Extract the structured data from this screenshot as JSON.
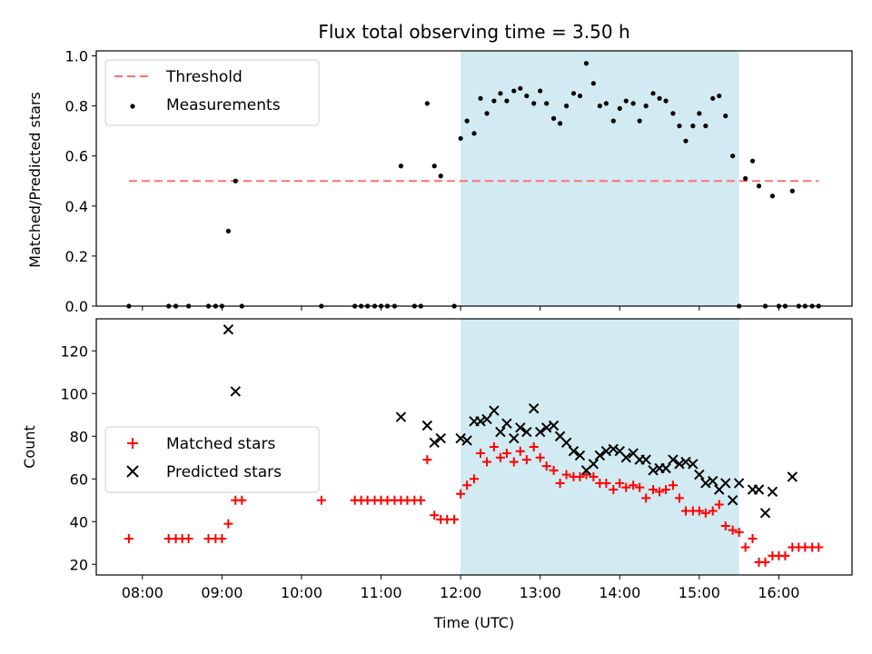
{
  "title": "Flux total observing time = 3.50 h",
  "xlabel": "Time (UTC)",
  "x_tick_labels": [
    "08:00",
    "09:00",
    "10:00",
    "11:00",
    "12:00",
    "13:00",
    "14:00",
    "15:00",
    "16:00"
  ],
  "chart_data": [
    {
      "type": "scatter",
      "panel": "top",
      "ylabel": "Matched/Predicted stars",
      "ylim": [
        0,
        1.02
      ],
      "yticks": [
        0.0,
        0.2,
        0.4,
        0.6,
        0.8,
        1.0
      ],
      "ytick_labels": [
        "0.0",
        "0.2",
        "0.4",
        "0.6",
        "0.8",
        "1.0"
      ],
      "xlim_hours": [
        7.42,
        16.92
      ],
      "x_tick_hours": [
        8,
        9,
        10,
        11,
        12,
        13,
        14,
        15,
        16
      ],
      "shaded_region_hours": [
        12.0,
        15.5
      ],
      "shade_color": "#add8e6",
      "legend_placement": "upper left",
      "threshold": {
        "name": "Threshold",
        "value": 0.5,
        "x_range_hours": [
          7.83,
          16.5
        ],
        "color": "#ff7070"
      },
      "series": [
        {
          "name": "Measurements",
          "color": "#000000",
          "points": [
            [
              7.83,
              0
            ],
            [
              8.33,
              0
            ],
            [
              8.42,
              0
            ],
            [
              8.58,
              0
            ],
            [
              8.83,
              0
            ],
            [
              8.92,
              0
            ],
            [
              9.0,
              0
            ],
            [
              9.08,
              0.3
            ],
            [
              9.17,
              0.5
            ],
            [
              9.25,
              0
            ],
            [
              10.25,
              0
            ],
            [
              10.67,
              0
            ],
            [
              10.75,
              0
            ],
            [
              10.83,
              0
            ],
            [
              10.92,
              0
            ],
            [
              11.0,
              0
            ],
            [
              11.08,
              0
            ],
            [
              11.17,
              0
            ],
            [
              11.25,
              0.56
            ],
            [
              11.42,
              0
            ],
            [
              11.5,
              0
            ],
            [
              11.58,
              0.81
            ],
            [
              11.67,
              0.56
            ],
            [
              11.75,
              0.52
            ],
            [
              11.92,
              0
            ],
            [
              12.0,
              0.67
            ],
            [
              12.08,
              0.74
            ],
            [
              12.17,
              0.69
            ],
            [
              12.25,
              0.83
            ],
            [
              12.33,
              0.77
            ],
            [
              12.42,
              0.82
            ],
            [
              12.5,
              0.85
            ],
            [
              12.58,
              0.82
            ],
            [
              12.67,
              0.86
            ],
            [
              12.75,
              0.87
            ],
            [
              12.83,
              0.84
            ],
            [
              12.92,
              0.81
            ],
            [
              13.0,
              0.86
            ],
            [
              13.08,
              0.81
            ],
            [
              13.17,
              0.75
            ],
            [
              13.25,
              0.73
            ],
            [
              13.33,
              0.8
            ],
            [
              13.42,
              0.85
            ],
            [
              13.5,
              0.84
            ],
            [
              13.58,
              0.97
            ],
            [
              13.67,
              0.89
            ],
            [
              13.75,
              0.8
            ],
            [
              13.83,
              0.81
            ],
            [
              13.92,
              0.74
            ],
            [
              14.0,
              0.79
            ],
            [
              14.08,
              0.82
            ],
            [
              14.17,
              0.81
            ],
            [
              14.25,
              0.74
            ],
            [
              14.33,
              0.8
            ],
            [
              14.42,
              0.85
            ],
            [
              14.5,
              0.83
            ],
            [
              14.58,
              0.82
            ],
            [
              14.67,
              0.77
            ],
            [
              14.75,
              0.72
            ],
            [
              14.83,
              0.66
            ],
            [
              14.92,
              0.72
            ],
            [
              15.0,
              0.77
            ],
            [
              15.08,
              0.72
            ],
            [
              15.17,
              0.83
            ],
            [
              15.25,
              0.84
            ],
            [
              15.33,
              0.76
            ],
            [
              15.42,
              0.6
            ],
            [
              15.5,
              0
            ],
            [
              15.58,
              0.51
            ],
            [
              15.67,
              0.58
            ],
            [
              15.75,
              0.48
            ],
            [
              15.83,
              0
            ],
            [
              15.92,
              0.44
            ],
            [
              16.0,
              0
            ],
            [
              16.08,
              0
            ],
            [
              16.17,
              0.46
            ],
            [
              16.25,
              0
            ],
            [
              16.33,
              0
            ],
            [
              16.42,
              0
            ],
            [
              16.5,
              0
            ]
          ]
        }
      ]
    },
    {
      "type": "scatter",
      "panel": "bottom",
      "ylabel": "Count",
      "ylim": [
        15,
        135
      ],
      "yticks": [
        20,
        40,
        60,
        80,
        100,
        120
      ],
      "ytick_labels": [
        "20",
        "40",
        "60",
        "80",
        "100",
        "120"
      ],
      "xlim_hours": [
        7.42,
        16.92
      ],
      "x_tick_hours": [
        8,
        9,
        10,
        11,
        12,
        13,
        14,
        15,
        16
      ],
      "shaded_region_hours": [
        12.0,
        15.5
      ],
      "shade_color": "#add8e6",
      "legend_placement": "center left",
      "series": [
        {
          "name": "Matched stars",
          "marker": "plus",
          "color": "#ff0000",
          "points": [
            [
              7.83,
              32
            ],
            [
              8.33,
              32
            ],
            [
              8.42,
              32
            ],
            [
              8.5,
              32
            ],
            [
              8.58,
              32
            ],
            [
              8.83,
              32
            ],
            [
              8.92,
              32
            ],
            [
              9.0,
              32
            ],
            [
              9.08,
              39
            ],
            [
              9.17,
              50
            ],
            [
              9.25,
              50
            ],
            [
              10.25,
              50
            ],
            [
              10.67,
              50
            ],
            [
              10.75,
              50
            ],
            [
              10.83,
              50
            ],
            [
              10.92,
              50
            ],
            [
              11.0,
              50
            ],
            [
              11.08,
              50
            ],
            [
              11.17,
              50
            ],
            [
              11.25,
              50
            ],
            [
              11.33,
              50
            ],
            [
              11.42,
              50
            ],
            [
              11.5,
              50
            ],
            [
              11.58,
              69
            ],
            [
              11.67,
              43
            ],
            [
              11.75,
              41
            ],
            [
              11.83,
              41
            ],
            [
              11.92,
              41
            ],
            [
              12.0,
              53
            ],
            [
              12.08,
              57
            ],
            [
              12.17,
              60
            ],
            [
              12.25,
              72
            ],
            [
              12.33,
              68
            ],
            [
              12.42,
              75
            ],
            [
              12.5,
              70
            ],
            [
              12.58,
              72
            ],
            [
              12.67,
              68
            ],
            [
              12.75,
              73
            ],
            [
              12.83,
              69
            ],
            [
              12.92,
              75
            ],
            [
              13.0,
              70
            ],
            [
              13.08,
              66
            ],
            [
              13.17,
              64
            ],
            [
              13.25,
              58
            ],
            [
              13.33,
              62
            ],
            [
              13.42,
              61
            ],
            [
              13.5,
              61
            ],
            [
              13.58,
              62
            ],
            [
              13.67,
              61
            ],
            [
              13.75,
              58
            ],
            [
              13.83,
              58
            ],
            [
              13.92,
              55
            ],
            [
              14.0,
              58
            ],
            [
              14.08,
              56
            ],
            [
              14.17,
              57
            ],
            [
              14.25,
              56
            ],
            [
              14.33,
              51
            ],
            [
              14.42,
              55
            ],
            [
              14.5,
              54
            ],
            [
              14.58,
              55
            ],
            [
              14.67,
              57
            ],
            [
              14.75,
              51
            ],
            [
              14.83,
              45
            ],
            [
              14.92,
              45
            ],
            [
              15.0,
              45
            ],
            [
              15.08,
              44
            ],
            [
              15.17,
              45
            ],
            [
              15.25,
              48
            ],
            [
              15.33,
              38
            ],
            [
              15.42,
              36
            ],
            [
              15.5,
              35
            ],
            [
              15.58,
              28
            ],
            [
              15.67,
              32
            ],
            [
              15.75,
              21
            ],
            [
              15.83,
              21
            ],
            [
              15.92,
              24
            ],
            [
              16.0,
              24
            ],
            [
              16.08,
              24
            ],
            [
              16.17,
              28
            ],
            [
              16.25,
              28
            ],
            [
              16.33,
              28
            ],
            [
              16.42,
              28
            ],
            [
              16.5,
              28
            ]
          ]
        },
        {
          "name": "Predicted stars",
          "marker": "x",
          "color": "#000000",
          "points": [
            [
              9.08,
              130
            ],
            [
              9.17,
              101
            ],
            [
              11.25,
              89
            ],
            [
              11.58,
              85
            ],
            [
              11.67,
              77
            ],
            [
              11.75,
              79
            ],
            [
              12.0,
              79
            ],
            [
              12.08,
              78
            ],
            [
              12.17,
              87
            ],
            [
              12.25,
              87
            ],
            [
              12.33,
              88
            ],
            [
              12.42,
              92
            ],
            [
              12.5,
              82
            ],
            [
              12.58,
              86
            ],
            [
              12.67,
              79
            ],
            [
              12.75,
              84
            ],
            [
              12.83,
              82
            ],
            [
              12.92,
              93
            ],
            [
              13.0,
              82
            ],
            [
              13.08,
              84
            ],
            [
              13.17,
              85
            ],
            [
              13.25,
              80
            ],
            [
              13.33,
              77
            ],
            [
              13.42,
              73
            ],
            [
              13.5,
              71
            ],
            [
              13.58,
              64
            ],
            [
              13.67,
              67
            ],
            [
              13.75,
              71
            ],
            [
              13.83,
              73
            ],
            [
              13.92,
              74
            ],
            [
              14.0,
              73
            ],
            [
              14.08,
              70
            ],
            [
              14.17,
              72
            ],
            [
              14.25,
              69
            ],
            [
              14.33,
              69
            ],
            [
              14.42,
              64
            ],
            [
              14.5,
              65
            ],
            [
              14.58,
              65
            ],
            [
              14.67,
              69
            ],
            [
              14.75,
              67
            ],
            [
              14.83,
              68
            ],
            [
              14.92,
              67
            ],
            [
              15.0,
              62
            ],
            [
              15.08,
              58
            ],
            [
              15.17,
              59
            ],
            [
              15.25,
              55
            ],
            [
              15.33,
              58
            ],
            [
              15.42,
              50
            ],
            [
              15.5,
              58
            ],
            [
              15.67,
              55
            ],
            [
              15.75,
              55
            ],
            [
              15.83,
              44
            ],
            [
              15.92,
              54
            ],
            [
              16.17,
              61
            ]
          ]
        }
      ]
    }
  ]
}
